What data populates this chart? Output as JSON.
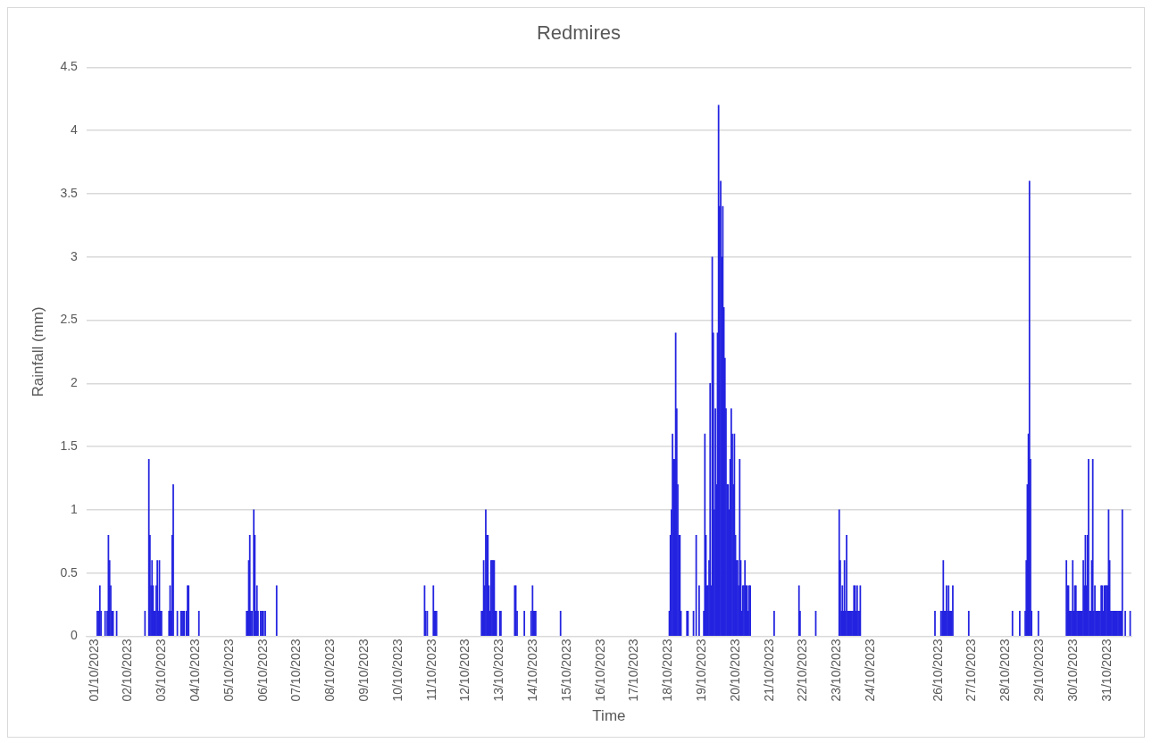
{
  "chart_data": {
    "type": "bar",
    "title": "Redmires",
    "xlabel": "Time",
    "ylabel": "Rainfall (mm)",
    "color": "#2323e0",
    "grid": "y",
    "xlim": [
      "2023-09-30T18:25",
      "2023-10-31T17:15"
    ],
    "ylim": [
      0,
      4.5
    ],
    "yticks": [
      0,
      0.5,
      1,
      1.5,
      2,
      2.5,
      3,
      3.5,
      4,
      4.5
    ],
    "xticks": [
      {
        "value": "2023-10-01",
        "label": "01/10/2023"
      },
      {
        "value": "2023-10-02",
        "label": "02/10/2023"
      },
      {
        "value": "2023-10-03",
        "label": "03/10/2023"
      },
      {
        "value": "2023-10-04",
        "label": "04/10/2023"
      },
      {
        "value": "2023-10-05",
        "label": "05/10/2023"
      },
      {
        "value": "2023-10-06",
        "label": "06/10/2023"
      },
      {
        "value": "2023-10-07",
        "label": "07/10/2023"
      },
      {
        "value": "2023-10-08",
        "label": "08/10/2023"
      },
      {
        "value": "2023-10-09",
        "label": "09/10/2023"
      },
      {
        "value": "2023-10-10",
        "label": "10/10/2023"
      },
      {
        "value": "2023-10-11",
        "label": "11/10/2023"
      },
      {
        "value": "2023-10-12",
        "label": "12/10/2023"
      },
      {
        "value": "2023-10-13",
        "label": "13/10/2023"
      },
      {
        "value": "2023-10-14",
        "label": "14/10/2023"
      },
      {
        "value": "2023-10-15",
        "label": "15/10/2023"
      },
      {
        "value": "2023-10-16",
        "label": "16/10/2023"
      },
      {
        "value": "2023-10-17",
        "label": "17/10/2023"
      },
      {
        "value": "2023-10-18",
        "label": "18/10/2023"
      },
      {
        "value": "2023-10-19",
        "label": "19/10/2023"
      },
      {
        "value": "2023-10-20",
        "label": "20/10/2023"
      },
      {
        "value": "2023-10-21",
        "label": "21/10/2023"
      },
      {
        "value": "2023-10-22",
        "label": "22/10/2023"
      },
      {
        "value": "2023-10-23",
        "label": "23/10/2023"
      },
      {
        "value": "2023-10-24",
        "label": "24/10/2023"
      },
      {
        "value": "2023-10-26",
        "label": "26/10/2023"
      },
      {
        "value": "2023-10-27",
        "label": "27/10/2023"
      },
      {
        "value": "2023-10-28",
        "label": "28/10/2023"
      },
      {
        "value": "2023-10-29",
        "label": "29/10/2023"
      },
      {
        "value": "2023-10-30",
        "label": "30/10/2023"
      },
      {
        "value": "2023-10-31",
        "label": "31/10/2023"
      }
    ],
    "x": [
      "2023-10-01T02:05",
      "2023-10-01T02:55",
      "2023-10-01T03:55",
      "2023-10-01T04:45",
      "2023-10-01T07:40",
      "2023-10-01T09:10",
      "2023-10-01T10:00",
      "2023-10-01T10:50",
      "2023-10-01T11:40",
      "2023-10-01T12:30",
      "2023-10-01T13:20",
      "2023-10-01T15:50",
      "2023-10-02T12:00",
      "2023-10-02T14:45",
      "2023-10-02T15:30",
      "2023-10-02T16:15",
      "2023-10-02T17:00",
      "2023-10-02T17:45",
      "2023-10-02T18:30",
      "2023-10-02T19:15",
      "2023-10-02T20:00",
      "2023-10-02T20:45",
      "2023-10-02T21:30",
      "2023-10-02T22:15",
      "2023-10-02T23:00",
      "2023-10-02T23:45",
      "2023-10-03T05:05",
      "2023-10-03T05:50",
      "2023-10-03T06:35",
      "2023-10-03T07:20",
      "2023-10-03T08:05",
      "2023-10-03T11:00",
      "2023-10-03T13:35",
      "2023-10-03T14:25",
      "2023-10-03T15:10",
      "2023-10-03T15:55",
      "2023-10-03T17:30",
      "2023-10-03T18:15",
      "2023-10-03T19:00",
      "2023-10-04T02:20",
      "2023-10-05T12:15",
      "2023-10-05T13:00",
      "2023-10-05T13:45",
      "2023-10-05T14:30",
      "2023-10-05T15:15",
      "2023-10-05T16:00",
      "2023-10-05T17:20",
      "2023-10-05T18:05",
      "2023-10-05T18:50",
      "2023-10-05T19:35",
      "2023-10-05T20:20",
      "2023-10-05T22:15",
      "2023-10-05T23:10",
      "2023-10-06T00:05",
      "2023-10-06T01:30",
      "2023-10-06T09:35",
      "2023-10-10T18:45",
      "2023-10-10T19:30",
      "2023-10-10T20:40",
      "2023-10-11T01:00",
      "2023-10-11T01:45",
      "2023-10-11T02:30",
      "2023-10-11T03:15",
      "2023-10-12T11:15",
      "2023-10-12T12:00",
      "2023-10-12T12:45",
      "2023-10-12T13:30",
      "2023-10-12T14:15",
      "2023-10-12T15:00",
      "2023-10-12T15:45",
      "2023-10-12T16:30",
      "2023-10-12T17:15",
      "2023-10-12T18:00",
      "2023-10-12T18:45",
      "2023-10-12T19:30",
      "2023-10-12T20:15",
      "2023-10-12T21:00",
      "2023-10-12T21:45",
      "2023-10-13T00:15",
      "2023-10-13T01:00",
      "2023-10-13T10:50",
      "2023-10-13T11:35",
      "2023-10-13T12:30",
      "2023-10-13T17:40",
      "2023-10-13T22:30",
      "2023-10-13T23:30",
      "2023-10-14T00:15",
      "2023-10-14T01:00",
      "2023-10-14T01:45",
      "2023-10-14T19:25",
      "2023-10-18T00:45",
      "2023-10-18T01:30",
      "2023-10-18T02:15",
      "2023-10-18T03:00",
      "2023-10-18T03:45",
      "2023-10-18T04:30",
      "2023-10-18T05:15",
      "2023-10-18T06:00",
      "2023-10-18T06:45",
      "2023-10-18T07:30",
      "2023-10-18T08:15",
      "2023-10-18T09:00",
      "2023-10-18T13:15",
      "2023-10-18T14:00",
      "2023-10-18T17:55",
      "2023-10-18T19:50",
      "2023-10-18T21:55",
      "2023-10-19T01:15",
      "2023-10-19T02:00",
      "2023-10-19T02:45",
      "2023-10-19T03:30",
      "2023-10-19T04:15",
      "2023-10-19T05:00",
      "2023-10-19T05:45",
      "2023-10-19T06:30",
      "2023-10-19T07:15",
      "2023-10-19T08:00",
      "2023-10-19T08:45",
      "2023-10-19T09:30",
      "2023-10-19T10:15",
      "2023-10-19T11:00",
      "2023-10-19T11:45",
      "2023-10-19T12:30",
      "2023-10-19T13:15",
      "2023-10-19T14:00",
      "2023-10-19T14:45",
      "2023-10-19T15:30",
      "2023-10-19T16:15",
      "2023-10-19T17:00",
      "2023-10-19T17:45",
      "2023-10-19T18:30",
      "2023-10-19T19:15",
      "2023-10-19T20:00",
      "2023-10-19T20:45",
      "2023-10-19T21:30",
      "2023-10-19T22:15",
      "2023-10-19T23:00",
      "2023-10-19T23:45",
      "2023-10-20T00:30",
      "2023-10-20T01:15",
      "2023-10-20T02:00",
      "2023-10-20T02:45",
      "2023-10-20T03:30",
      "2023-10-20T04:15",
      "2023-10-20T05:00",
      "2023-10-20T05:45",
      "2023-10-20T06:30",
      "2023-10-20T07:15",
      "2023-10-20T08:00",
      "2023-10-20T08:45",
      "2023-10-20T09:30",
      "2023-10-20T10:15",
      "2023-10-21T03:15",
      "2023-10-21T20:55",
      "2023-10-21T21:40",
      "2023-10-22T08:50",
      "2023-10-23T01:30",
      "2023-10-23T02:15",
      "2023-10-23T03:00",
      "2023-10-23T03:45",
      "2023-10-23T04:30",
      "2023-10-23T05:15",
      "2023-10-23T06:00",
      "2023-10-23T06:45",
      "2023-10-23T07:30",
      "2023-10-23T08:15",
      "2023-10-23T09:00",
      "2023-10-23T09:45",
      "2023-10-23T10:30",
      "2023-10-23T11:15",
      "2023-10-23T12:00",
      "2023-10-23T12:45",
      "2023-10-23T13:30",
      "2023-10-23T14:15",
      "2023-10-23T15:00",
      "2023-10-23T15:45",
      "2023-10-23T16:30",
      "2023-10-25T21:35",
      "2023-10-26T01:50",
      "2023-10-26T02:45",
      "2023-10-26T03:30",
      "2023-10-26T04:15",
      "2023-10-26T05:00",
      "2023-10-26T05:45",
      "2023-10-26T06:30",
      "2023-10-26T07:15",
      "2023-10-26T08:00",
      "2023-10-26T08:45",
      "2023-10-26T09:30",
      "2023-10-26T10:15",
      "2023-10-26T21:35",
      "2023-10-28T04:40",
      "2023-10-28T09:50",
      "2023-10-28T13:45",
      "2023-10-28T14:30",
      "2023-10-28T15:15",
      "2023-10-28T16:00",
      "2023-10-28T16:45",
      "2023-10-28T17:30",
      "2023-10-28T18:15",
      "2023-10-28T23:05",
      "2023-10-29T19:00",
      "2023-10-29T19:45",
      "2023-10-29T20:30",
      "2023-10-29T21:15",
      "2023-10-29T22:00",
      "2023-10-29T22:45",
      "2023-10-29T23:30",
      "2023-10-30T00:15",
      "2023-10-30T01:00",
      "2023-10-30T01:45",
      "2023-10-30T02:30",
      "2023-10-30T03:15",
      "2023-10-30T04:00",
      "2023-10-30T04:45",
      "2023-10-30T05:30",
      "2023-10-30T06:15",
      "2023-10-30T07:00",
      "2023-10-30T07:45",
      "2023-10-30T08:30",
      "2023-10-30T09:15",
      "2023-10-30T10:00",
      "2023-10-30T10:45",
      "2023-10-30T11:30",
      "2023-10-30T12:15",
      "2023-10-30T13:00",
      "2023-10-30T13:45",
      "2023-10-30T14:30",
      "2023-10-30T15:15",
      "2023-10-30T16:00",
      "2023-10-30T16:45",
      "2023-10-30T17:30",
      "2023-10-30T18:15",
      "2023-10-30T19:00",
      "2023-10-30T19:45",
      "2023-10-30T20:30",
      "2023-10-30T21:15",
      "2023-10-30T22:00",
      "2023-10-30T22:45",
      "2023-10-30T23:30",
      "2023-10-31T00:15",
      "2023-10-31T01:00",
      "2023-10-31T01:45",
      "2023-10-31T02:30",
      "2023-10-31T03:15",
      "2023-10-31T04:00",
      "2023-10-31T04:45",
      "2023-10-31T05:30",
      "2023-10-31T06:15",
      "2023-10-31T07:00",
      "2023-10-31T07:45",
      "2023-10-31T08:30",
      "2023-10-31T09:15",
      "2023-10-31T10:00",
      "2023-10-31T10:45",
      "2023-10-31T12:50",
      "2023-10-31T16:20"
    ],
    "values": [
      0.2,
      0.2,
      0.4,
      0.2,
      0.2,
      0.2,
      0.8,
      0.6,
      0.4,
      0.2,
      0.2,
      0.2,
      0.2,
      1.4,
      0.8,
      0.4,
      0.6,
      0.4,
      0.2,
      0.2,
      0.4,
      0.6,
      0.2,
      0.6,
      0.2,
      0.2,
      0.2,
      0.4,
      0.2,
      0.8,
      1.2,
      0.2,
      0.2,
      0.2,
      0.2,
      0.2,
      0.2,
      0.4,
      0.4,
      0.2,
      0.2,
      0.2,
      0.6,
      0.8,
      0.2,
      0.2,
      1.0,
      0.8,
      0.2,
      0.4,
      0.2,
      0.2,
      0.2,
      0.2,
      0.2,
      0.4,
      0.4,
      0.2,
      0.2,
      0.4,
      0.2,
      0.2,
      0.2,
      0.2,
      0.2,
      0.6,
      0.4,
      1.0,
      0.8,
      0.8,
      0.4,
      0.2,
      0.6,
      0.6,
      0.6,
      0.6,
      0.2,
      0.2,
      0.2,
      0.2,
      0.4,
      0.4,
      0.2,
      0.2,
      0.2,
      0.4,
      0.2,
      0.2,
      0.2,
      0.2,
      0.2,
      0.8,
      1.0,
      1.6,
      1.4,
      1.4,
      2.4,
      1.8,
      1.2,
      0.8,
      0.8,
      0.2,
      0.2,
      0.2,
      0.2,
      0.8,
      0.4,
      0.2,
      1.6,
      0.8,
      0.4,
      0.4,
      0.6,
      2.0,
      0.4,
      3.0,
      2.4,
      1.0,
      1.8,
      1.2,
      2.4,
      4.2,
      3.4,
      3.6,
      3.0,
      3.4,
      2.6,
      2.2,
      1.8,
      1.2,
      1.2,
      1.0,
      1.4,
      1.8,
      1.6,
      1.2,
      1.6,
      0.8,
      0.6,
      0.6,
      0.4,
      1.4,
      0.6,
      0.2,
      0.4,
      0.4,
      0.6,
      0.4,
      0.4,
      0.2,
      0.4,
      0.4,
      0.2,
      0.4,
      0.2,
      0.2,
      1.0,
      0.6,
      0.2,
      0.4,
      0.2,
      0.6,
      0.2,
      0.8,
      0.2,
      0.2,
      0.2,
      0.2,
      0.2,
      0.2,
      0.4,
      0.4,
      0.2,
      0.4,
      0.2,
      0.2,
      0.4,
      0.2,
      0.2,
      0.2,
      0.6,
      0.2,
      0.2,
      0.4,
      0.2,
      0.4,
      0.2,
      0.2,
      0.2,
      0.4,
      0.2,
      0.2,
      0.2,
      0.2,
      0.6,
      1.2,
      1.6,
      3.6,
      1.4,
      0.2,
      0.2,
      0.6,
      0.4,
      0.4,
      0.2,
      0.2,
      0.2,
      0.6,
      0.2,
      0.4,
      0.4,
      0.2,
      0.2,
      0.2,
      0.2,
      0.2,
      0.2,
      0.6,
      0.4,
      0.8,
      0.4,
      0.8,
      1.4,
      0.2,
      0.2,
      0.6,
      1.4,
      0.2,
      0.4,
      0.2,
      0.2,
      0.2,
      0.2,
      0.2,
      0.4,
      0.4,
      0.2,
      0.4,
      0.4,
      0.4,
      0.4,
      1.0,
      0.6,
      0.2,
      0.2,
      0.2,
      0.2,
      0.2,
      0.2,
      0.2,
      0.2,
      0.2,
      0.2,
      0.2,
      1.0,
      0.2,
      0.2
    ]
  }
}
